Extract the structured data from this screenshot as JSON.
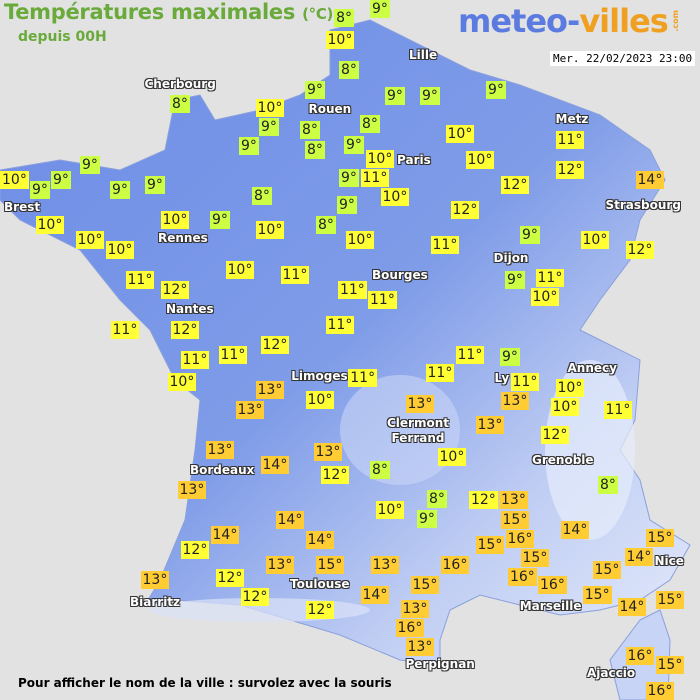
{
  "header": {
    "title": "Températures maximales",
    "unit": "(°C)",
    "subtitle": "depuis 00H",
    "logo_main": "meteo-",
    "logo_accent": "villes",
    "logo_suffix": ".com",
    "datetime": "Mer. 22/02/2023 23:00"
  },
  "colors": {
    "land": "#6f8fe6",
    "land_highland": "#dfe6fa",
    "sea": "#e2e2e2",
    "label_cool": "#ccff44",
    "label_mild": "#ffff33",
    "label_warm": "#ffcc33",
    "title": "#6aaa3a"
  },
  "cities": [
    "Lille",
    "Cherbourg",
    "Metz",
    "Rouen",
    "Paris",
    "Brest",
    "Strasbourg",
    "Rennes",
    "Dijon",
    "Bourges",
    "Nantes",
    "Limoges",
    "Ly",
    "Annecy",
    "Clermont\nFerrand",
    "Grenoble",
    "Bordeaux",
    "Nice",
    "Toulouse",
    "Biarritz",
    "Marseille",
    "Perpignan",
    "Ajaccio"
  ],
  "temperatures": [
    8,
    9,
    10,
    8,
    9,
    9,
    9,
    9,
    8,
    10,
    9,
    8,
    8,
    9,
    8,
    9,
    10,
    11,
    10,
    10,
    9,
    10,
    9,
    9,
    9,
    9,
    9,
    11,
    10,
    12,
    12,
    14,
    8,
    9,
    12,
    10,
    10,
    9,
    10,
    8,
    10,
    10,
    10,
    11,
    9,
    10,
    12,
    10,
    11,
    11,
    12,
    11,
    11,
    9,
    11,
    10,
    11,
    12,
    11,
    12,
    11,
    11,
    11,
    9,
    10,
    11,
    11,
    11,
    13,
    10,
    13,
    10,
    13,
    10,
    13,
    11,
    13,
    12,
    13,
    13,
    10,
    14,
    8,
    12,
    8,
    13,
    8,
    12,
    13,
    10,
    9,
    14,
    15,
    14,
    14,
    14,
    15,
    16,
    15,
    14,
    12,
    13,
    15,
    13,
    16,
    15,
    15,
    16,
    16,
    13,
    12,
    12,
    14,
    15,
    15,
    14,
    15,
    12,
    13,
    16,
    13,
    16,
    15,
    16
  ],
  "degree_symbol": "°",
  "footer": "Pour afficher le nom de la ville : survolez avec la souris"
}
